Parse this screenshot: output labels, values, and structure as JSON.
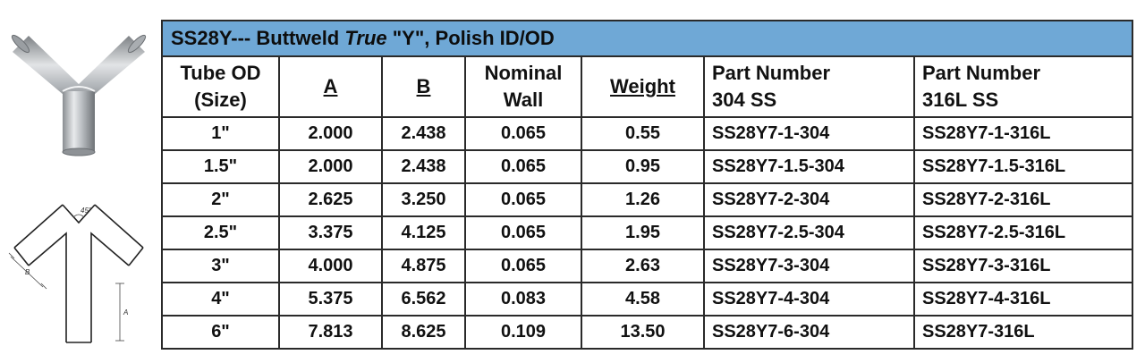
{
  "title": {
    "prefix": "SS28Y--- Buttweld ",
    "italic": "True",
    "quote_y": " \"Y\"",
    "suffix": ", Polish ID/OD"
  },
  "headers": {
    "tube_od_line1": "Tube OD",
    "tube_od_line2": "(Size)",
    "a": "A",
    "b": "B",
    "nominal_line1": "Nominal",
    "nominal_line2": "Wall",
    "weight": "Weight",
    "pn304_line1": "Part Number",
    "pn304_line2": "304 SS",
    "pn316_line1": "Part Number",
    "pn316_line2": "316L SS"
  },
  "rows": [
    {
      "size": "1\"",
      "a": "2.000",
      "b": "2.438",
      "wall": "0.065",
      "weight": "0.55",
      "pn304": "SS28Y7-1-304",
      "pn316": "SS28Y7-1-316L"
    },
    {
      "size": "1.5\"",
      "a": "2.000",
      "b": "2.438",
      "wall": "0.065",
      "weight": "0.95",
      "pn304": "SS28Y7-1.5-304",
      "pn316": "SS28Y7-1.5-316L"
    },
    {
      "size": "2\"",
      "a": "2.625",
      "b": "3.250",
      "wall": "0.065",
      "weight": "1.26",
      "pn304": "SS28Y7-2-304",
      "pn316": "SS28Y7-2-316L"
    },
    {
      "size": "2.5\"",
      "a": "3.375",
      "b": "4.125",
      "wall": "0.065",
      "weight": "1.95",
      "pn304": "SS28Y7-2.5-304",
      "pn316": "SS28Y7-2.5-316L"
    },
    {
      "size": "3\"",
      "a": "4.000",
      "b": "4.875",
      "wall": "0.065",
      "weight": "2.63",
      "pn304": "SS28Y7-3-304",
      "pn316": "SS28Y7-3-316L"
    },
    {
      "size": "4\"",
      "a": "5.375",
      "b": "6.562",
      "wall": "0.083",
      "weight": "4.58",
      "pn304": "SS28Y7-4-304",
      "pn316": "SS28Y7-4-316L"
    },
    {
      "size": "6\"",
      "a": "7.813",
      "b": "8.625",
      "wall": "0.109",
      "weight": "13.50",
      "pn304": "SS28Y7-6-304",
      "pn316": "SS28Y7-316L"
    }
  ],
  "drawing_labels": {
    "angle": "45°",
    "dim_b": "B",
    "dim_a": "A"
  },
  "colors": {
    "title_bar": "#6fa8d6",
    "border": "#2a2a2a"
  }
}
